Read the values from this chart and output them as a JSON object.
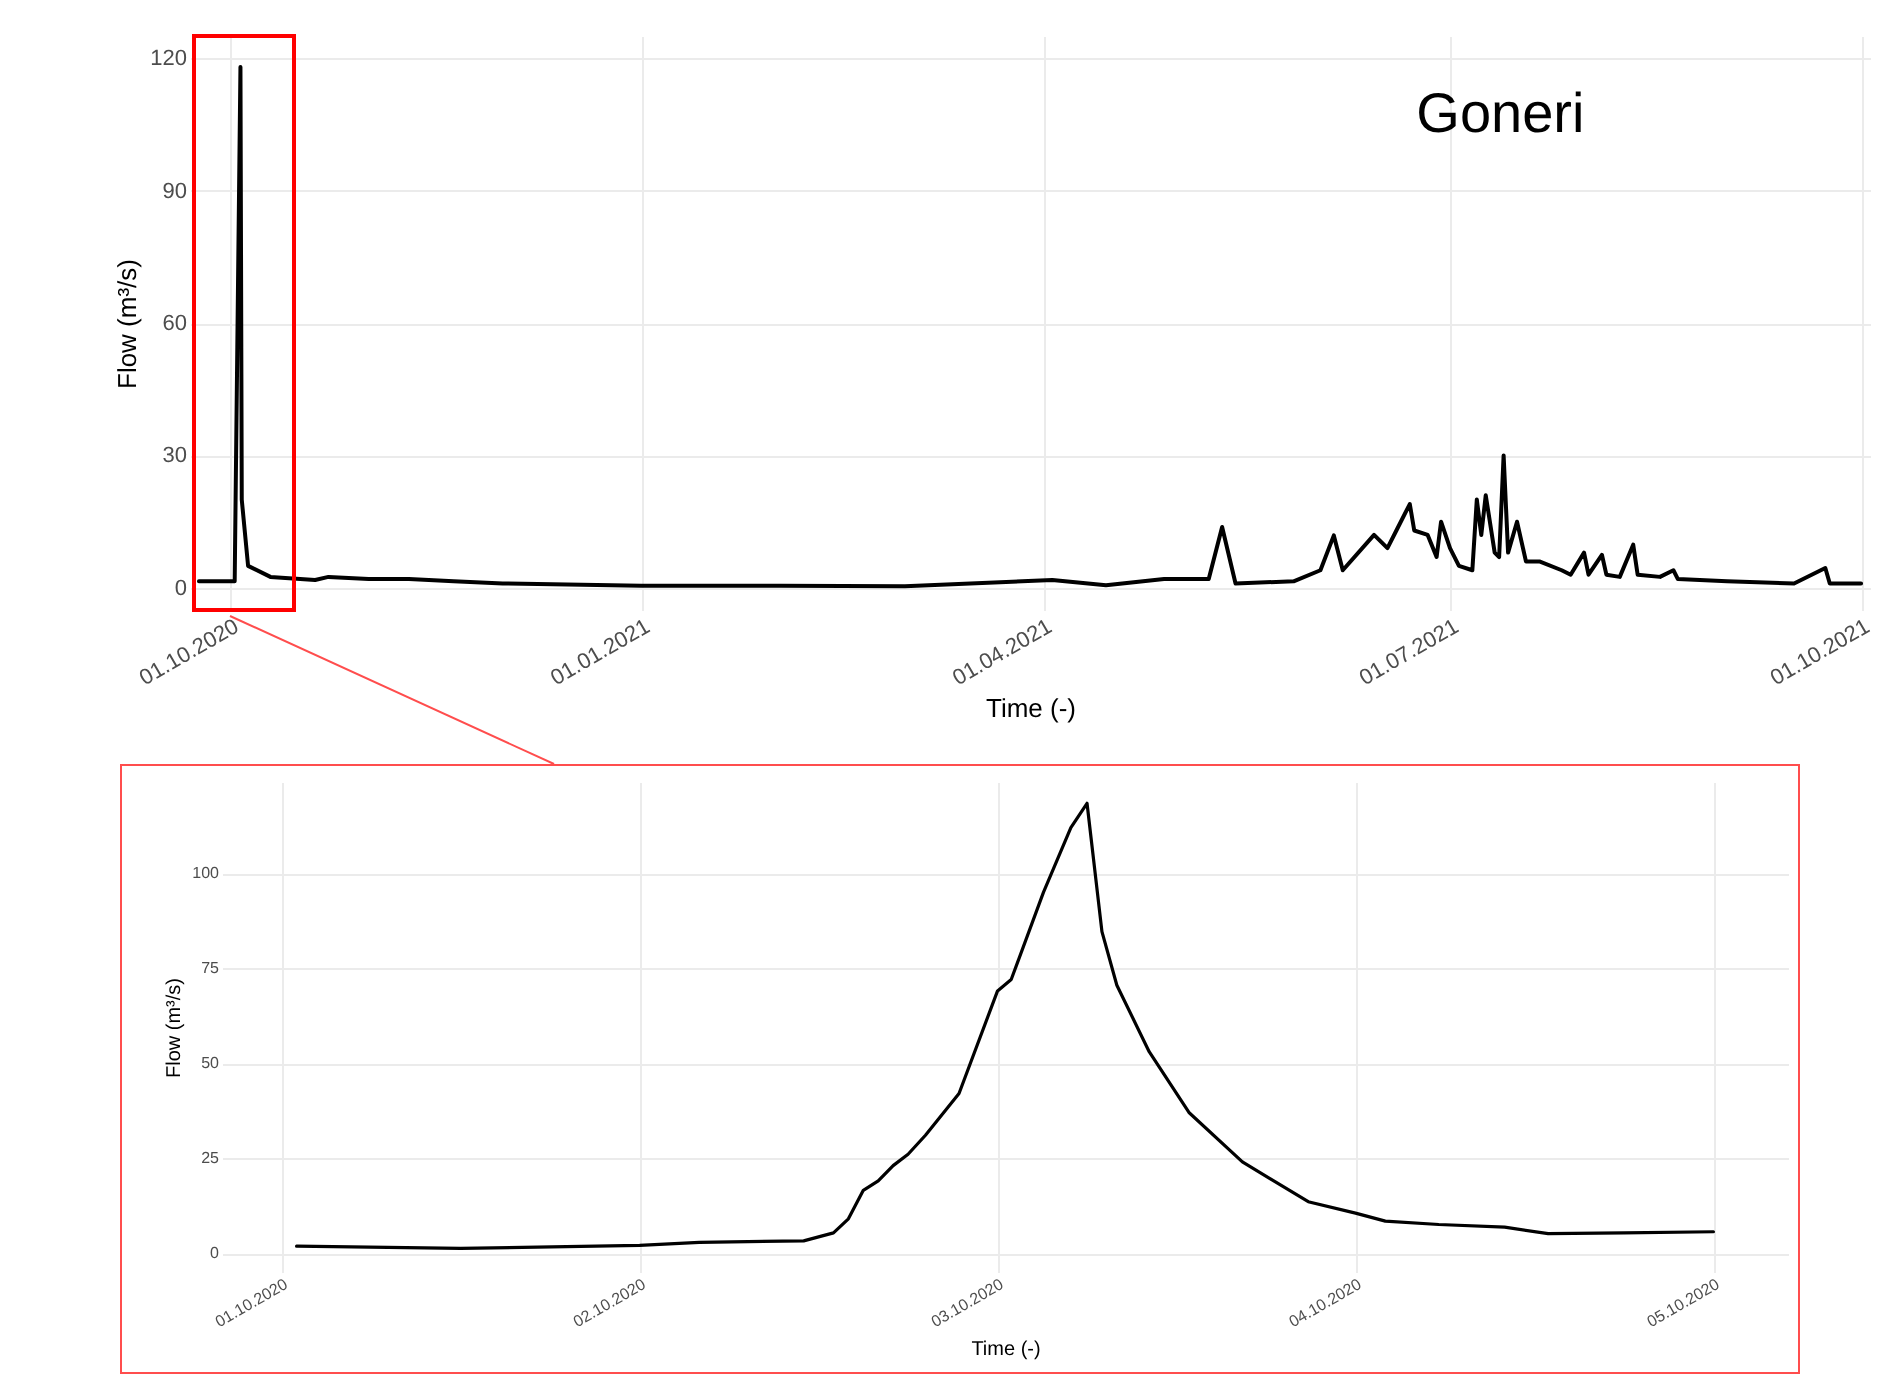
{
  "chart_data": [
    {
      "type": "line",
      "xlabel": "Time (-)",
      "ylabel": "Flow (m³/s)",
      "annotations": [
        "Goneri"
      ],
      "xlim": [
        "2020-09-22",
        "2021-10-03"
      ],
      "ylim": [
        -5,
        125
      ],
      "yticks": [
        0,
        30,
        60,
        90,
        120
      ],
      "xticks": [
        {
          "value": "2020-10-01",
          "label": "01.10.2020"
        },
        {
          "value": "2021-01-01",
          "label": "01.01.2021"
        },
        {
          "value": "2021-04-01",
          "label": "01.04.2021"
        },
        {
          "value": "2021-07-01",
          "label": "01.07.2021"
        },
        {
          "value": "2021-10-01",
          "label": "01.10.2021"
        }
      ],
      "grid": true,
      "series": [
        {
          "color": "#000000",
          "x": [
            "2020-09-24",
            "2020-10-02",
            "2020-10-03T07:00",
            "2020-10-03T14:00",
            "2020-10-05",
            "2020-10-10",
            "2020-10-20",
            "2020-10-23",
            "2020-11-01",
            "2020-11-10",
            "2020-11-20",
            "2020-12-01",
            "2021-01-01",
            "2021-02-01",
            "2021-03-01",
            "2021-04-03",
            "2021-04-15",
            "2021-04-28",
            "2021-05-08",
            "2021-05-11",
            "2021-05-14",
            "2021-05-27",
            "2021-06-02",
            "2021-06-05",
            "2021-06-07",
            "2021-06-14",
            "2021-06-17",
            "2021-06-19",
            "2021-06-22",
            "2021-06-23",
            "2021-06-26",
            "2021-06-28",
            "2021-06-29",
            "2021-07-01",
            "2021-07-03",
            "2021-07-06",
            "2021-07-07",
            "2021-07-08",
            "2021-07-09",
            "2021-07-11",
            "2021-07-12",
            "2021-07-13",
            "2021-07-14",
            "2021-07-16",
            "2021-07-18",
            "2021-07-21",
            "2021-07-26",
            "2021-07-28",
            "2021-07-31",
            "2021-08-01",
            "2021-08-04",
            "2021-08-05",
            "2021-08-08",
            "2021-08-11",
            "2021-08-12",
            "2021-08-17",
            "2021-08-20",
            "2021-08-21",
            "2021-09-01",
            "2021-09-16",
            "2021-09-23",
            "2021-09-24",
            "2021-10-01"
          ],
          "values": [
            1.5,
            1.5,
            118,
            20,
            5,
            2.5,
            1.8,
            2.5,
            2,
            2,
            1.5,
            1,
            0.5,
            0.5,
            0.4,
            1.8,
            0.6,
            2,
            2,
            13.8,
            1,
            1.5,
            4,
            11.9,
            4,
            12,
            9,
            13,
            19,
            13,
            12,
            7,
            15,
            9,
            5,
            4,
            20,
            12,
            21,
            8,
            7,
            30,
            8,
            15,
            6,
            6,
            4,
            3,
            8,
            3,
            7.5,
            3,
            2.5,
            9.8,
            3,
            2.5,
            4,
            2,
            1.5,
            1,
            4.5,
            1,
            1
          ]
        }
      ]
    },
    {
      "type": "line",
      "xlabel": "Time (-)",
      "ylabel": "Flow (m³/s)",
      "xlim": [
        "2020-09-30T20:00",
        "2020-10-05T05:00"
      ],
      "ylim": [
        -5,
        124
      ],
      "yticks": [
        0,
        25,
        50,
        75,
        100
      ],
      "xticks": [
        {
          "value": "2020-10-01",
          "label": "01.10.2020"
        },
        {
          "value": "2020-10-02",
          "label": "02.10.2020"
        },
        {
          "value": "2020-10-03",
          "label": "03.10.2020"
        },
        {
          "value": "2020-10-04",
          "label": "04.10.2020"
        },
        {
          "value": "2020-10-05",
          "label": "05.10.2020"
        }
      ],
      "grid": true,
      "series": [
        {
          "color": "#000000",
          "x": [
            "2020-10-01T01:00",
            "2020-10-01T12:00",
            "2020-10-02T00:00",
            "2020-10-02T04:00",
            "2020-10-02T11:00",
            "2020-10-02T13:00",
            "2020-10-02T14:00",
            "2020-10-02T15:00",
            "2020-10-02T16:00",
            "2020-10-02T17:00",
            "2020-10-02T18:00",
            "2020-10-02T19:10",
            "2020-10-02T21:25",
            "2020-10-03T00:00",
            "2020-10-03T00:55",
            "2020-10-03T03:05",
            "2020-10-03T04:55",
            "2020-10-03T06:00",
            "2020-10-03T07:00",
            "2020-10-03T08:00",
            "2020-10-03T10:10",
            "2020-10-03T12:50",
            "2020-10-03T16:25",
            "2020-10-03T20:50",
            "2020-10-04T00:00",
            "2020-10-04T02:00",
            "2020-10-04T05:35",
            "2020-10-04T10:00",
            "2020-10-04T12:55",
            "2020-10-04T18:00",
            "2020-10-05T00:00"
          ],
          "values": [
            1.8,
            1.2,
            2,
            2.8,
            3.2,
            5.3,
            9,
            16.5,
            19,
            23,
            26,
            31,
            42,
            69,
            72,
            95,
            112,
            118.4,
            84.6,
            70.5,
            53,
            37,
            24,
            13.5,
            10.5,
            8.4,
            7.5,
            6.8,
            5.1,
            5.3,
            5.6
          ]
        }
      ]
    }
  ]
}
